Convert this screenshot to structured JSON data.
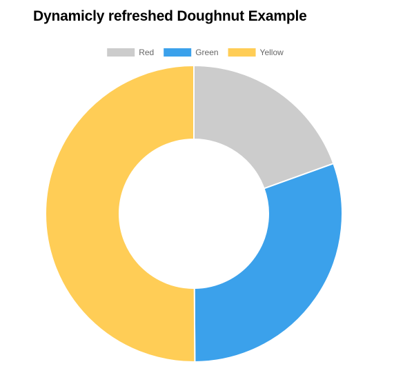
{
  "page": {
    "title": "Dynamicly refreshed Doughnut Example"
  },
  "chart_data": {
    "type": "doughnut",
    "title": "Dynamicly refreshed Doughnut Example",
    "legend_position": "top",
    "categories": [
      "Red",
      "Green",
      "Yellow"
    ],
    "values": [
      19.5,
      30.4,
      50.1
    ],
    "colors": [
      "#cccccc",
      "#3ba1eb",
      "#ffcd56"
    ]
  }
}
